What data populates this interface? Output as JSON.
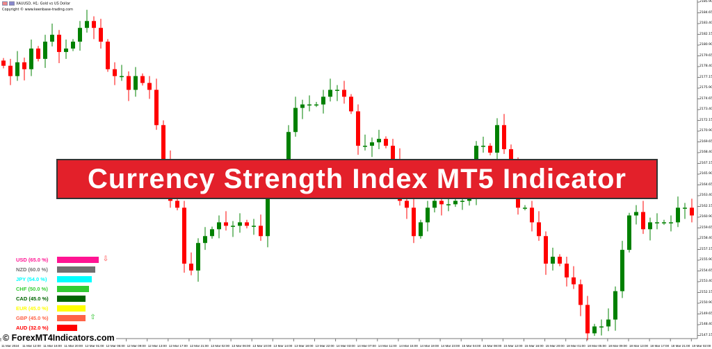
{
  "header": {
    "symbol": "XAUUSD, H1:",
    "description": "Gold vs US Dollar",
    "copyright": "Copyright © www.keenbase-trading.com"
  },
  "banner": {
    "title": "Currency Strength Index MT5 Indicator"
  },
  "watermark": "© ForexMT4Indicators.com",
  "legend": [
    {
      "label": "USD (65.0 %)",
      "value": 65.0,
      "color": "#ff1493",
      "arrow": "down"
    },
    {
      "label": "NZD (60.0 %)",
      "value": 60.0,
      "color": "#707070"
    },
    {
      "label": "JPY (54.0 %)",
      "value": 54.0,
      "color": "#00ffff"
    },
    {
      "label": "CHF (50.0 %)",
      "value": 50.0,
      "color": "#32cd32"
    },
    {
      "label": "CAD (45.0 %)",
      "value": 45.0,
      "color": "#006400"
    },
    {
      "label": "EUR (45.0 %)",
      "value": 45.0,
      "color": "#ffff00"
    },
    {
      "label": "GBP (45.0 %)",
      "value": 45.0,
      "color": "#ff6347",
      "arrow": "up"
    },
    {
      "label": "AUD (32.0 %)",
      "value": 32.0,
      "color": "#ff0000"
    }
  ],
  "chart_data": {
    "type": "candlestick",
    "symbol": "XAUUSD",
    "timeframe": "H1",
    "ylim": [
      2146.5,
      2186.2
    ],
    "up_color": "#008000",
    "down_color": "#ff0000",
    "y_ticks": [
      "2185.90",
      "2184.65",
      "2183.40",
      "2182.15",
      "2180.90",
      "2179.65",
      "2178.40",
      "2177.15",
      "2175.90",
      "2174.65",
      "2173.40",
      "2172.15",
      "2170.90",
      "2169.65",
      "2168.40",
      "2167.15",
      "2165.90",
      "2164.65",
      "2163.40",
      "2162.15",
      "2160.90",
      "2159.65",
      "2158.40",
      "2157.15",
      "2155.90",
      "2154.65",
      "2153.40",
      "2152.15",
      "2150.90",
      "2149.65",
      "2148.40",
      "2147.15"
    ],
    "x_ticks": [
      "11 Mar 2024",
      "11 Mar 12:00",
      "11 Mar 16:00",
      "11 Mar 20:00",
      "12 Mar 01:00",
      "12 Mar 05:00",
      "12 Mar 09:00",
      "12 Mar 13:00",
      "12 Mar 17:00",
      "12 Mar 21:00",
      "13 Mar 02:00",
      "13 Mar 06:00",
      "13 Mar 10:00",
      "13 Mar 14:00",
      "13 Mar 18:00",
      "13 Mar 22:00",
      "14 Mar 03:00",
      "14 Mar 07:00",
      "14 Mar 11:00",
      "14 Mar 15:00",
      "14 Mar 19:00",
      "14 Mar 23:00",
      "15 Mar 04:00",
      "15 Mar 08:00",
      "15 Mar 12:00",
      "15 Mar 16:00",
      "15 Mar 20:00",
      "18 Mar 01:00",
      "18 Mar 05:00",
      "18 Mar 09:00",
      "18 Mar 13:00",
      "18 Mar 17:00",
      "18 Mar 21:00",
      "19 Mar 02:00"
    ],
    "closes": [
      2178.5,
      2177.3,
      2178.9,
      2178.1,
      2180.5,
      2179.3,
      2181.3,
      2182.1,
      2180.1,
      2180.5,
      2181.3,
      2182.9,
      2183.7,
      2182.9,
      2181.3,
      2178.1,
      2177.3,
      2177.3,
      2175.7,
      2177.3,
      2176.5,
      2175.7,
      2171.6,
      2167.6,
      2162.8,
      2162.0,
      2155.5,
      2154.7,
      2157.9,
      2158.7,
      2159.5,
      2160.3,
      2159.9,
      2159.9,
      2160.3,
      2159.9,
      2159.9,
      2158.7,
      2164.4,
      2164.4,
      2166.0,
      2170.8,
      2173.6,
      2174.0,
      2174.0,
      2174.0,
      2174.9,
      2175.7,
      2175.7,
      2174.9,
      2173.2,
      2169.2,
      2169.2,
      2169.6,
      2170.0,
      2169.2,
      2167.6,
      2162.8,
      2162.0,
      2158.7,
      2160.3,
      2162.0,
      2162.8,
      2162.4,
      2162.4,
      2162.8,
      2162.8,
      2163.6,
      2169.2,
      2169.2,
      2168.4,
      2171.6,
      2168.8,
      2166.8,
      2162.0,
      2162.0,
      2160.3,
      2158.7,
      2155.5,
      2156.3,
      2155.5,
      2153.9,
      2153.1,
      2150.7,
      2147.4,
      2148.2,
      2148.2,
      2149.0,
      2152.3,
      2157.1,
      2161.1,
      2161.5,
      2159.5,
      2160.3,
      2160.3,
      2160.3,
      2160.3,
      2162.0,
      2162.0,
      2161.1
    ]
  }
}
